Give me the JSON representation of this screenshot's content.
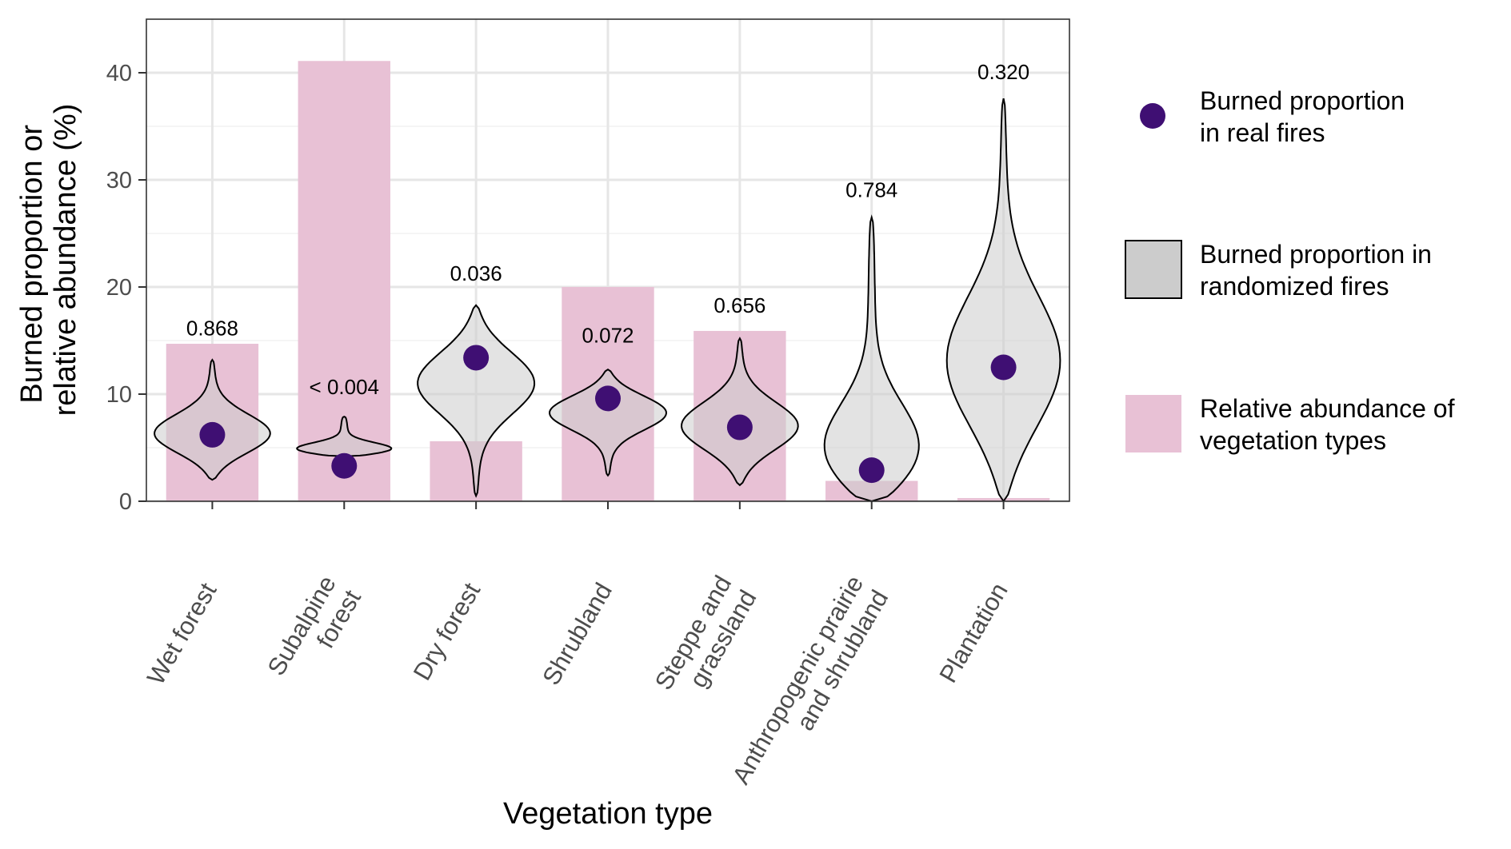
{
  "chart_data": {
    "type": "bar",
    "xlabel": "Vegetation type",
    "ylabel": [
      "Burned proportion or",
      "relative abundance (%)"
    ],
    "ylim": [
      0,
      45
    ],
    "yticks": [
      "0",
      "10",
      "20",
      "30",
      "40"
    ],
    "grid": true,
    "legend_position": "right",
    "categories": [
      [
        "Wet forest"
      ],
      [
        "Subalpine",
        "forest"
      ],
      [
        "Dry forest"
      ],
      [
        "Shrubland"
      ],
      [
        "Steppe and",
        "grassland"
      ],
      [
        "Anthropogenic prairie",
        "and shrubland"
      ],
      [
        "Plantation"
      ]
    ],
    "series": [
      {
        "name": [
          "Relative abundance of",
          "vegetation types"
        ],
        "kind": "bar",
        "color": "#e8c1d5",
        "values": [
          14.7,
          41.1,
          5.6,
          20.0,
          15.9,
          1.9,
          0.3
        ]
      },
      {
        "name": [
          "Burned proportion",
          "in real fires"
        ],
        "kind": "point",
        "color": "#3f0f73",
        "values": [
          6.2,
          3.3,
          13.4,
          9.6,
          6.9,
          2.9,
          12.5
        ]
      },
      {
        "name": [
          "Burned proportion in",
          "randomized fires"
        ],
        "kind": "violin",
        "color": "#cccccc",
        "ranges": [
          [
            2.0,
            13.2
          ],
          [
            4.2,
            7.9
          ],
          [
            0.5,
            18.3
          ],
          [
            2.4,
            12.3
          ],
          [
            1.5,
            15.2
          ],
          [
            0,
            26.5
          ],
          [
            0,
            37.6
          ]
        ]
      }
    ],
    "p_values": [
      "0.868",
      "< 0.004",
      "0.036",
      "0.072",
      "0.656",
      "0.784",
      "0.320"
    ],
    "p_value_y": [
      15.5,
      10.0,
      20.6,
      14.8,
      17.6,
      28.4,
      39.4
    ]
  }
}
